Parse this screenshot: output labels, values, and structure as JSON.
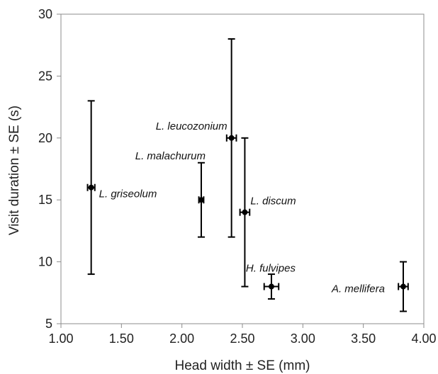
{
  "chart_data": {
    "type": "scatter",
    "title": "",
    "xlabel": "Head width ± SE (mm)",
    "ylabel": "Visit duration ± SE (s)",
    "xlim": [
      1.0,
      4.0
    ],
    "ylim": [
      5,
      30
    ],
    "x_ticks": [
      "1.00",
      "1.50",
      "2.00",
      "2.50",
      "3.00",
      "3.50",
      "4.00"
    ],
    "y_ticks": [
      "5",
      "10",
      "15",
      "20",
      "25",
      "30"
    ],
    "grid": false,
    "legend": "none",
    "marker_color": "#000000",
    "points": [
      {
        "label": "L. griseolum",
        "x": 1.25,
        "y": 16,
        "x_err": 0.03,
        "y_low": 9,
        "y_high": 23
      },
      {
        "label": "L. malachurum",
        "x": 2.16,
        "y": 15,
        "x_err": 0.02,
        "y_low": 12,
        "y_high": 18
      },
      {
        "label": "L. leucozonium",
        "x": 2.41,
        "y": 20,
        "x_err": 0.04,
        "y_low": 12,
        "y_high": 28
      },
      {
        "label": "L. discum",
        "x": 2.52,
        "y": 14,
        "x_err": 0.04,
        "y_low": 8,
        "y_high": 20
      },
      {
        "label": "H. fulvipes",
        "x": 2.74,
        "y": 8,
        "x_err": 0.06,
        "y_low": 7,
        "y_high": 9
      },
      {
        "label": "A. mellifera",
        "x": 3.83,
        "y": 8,
        "x_err": 0.04,
        "y_low": 6,
        "y_high": 10
      }
    ]
  }
}
